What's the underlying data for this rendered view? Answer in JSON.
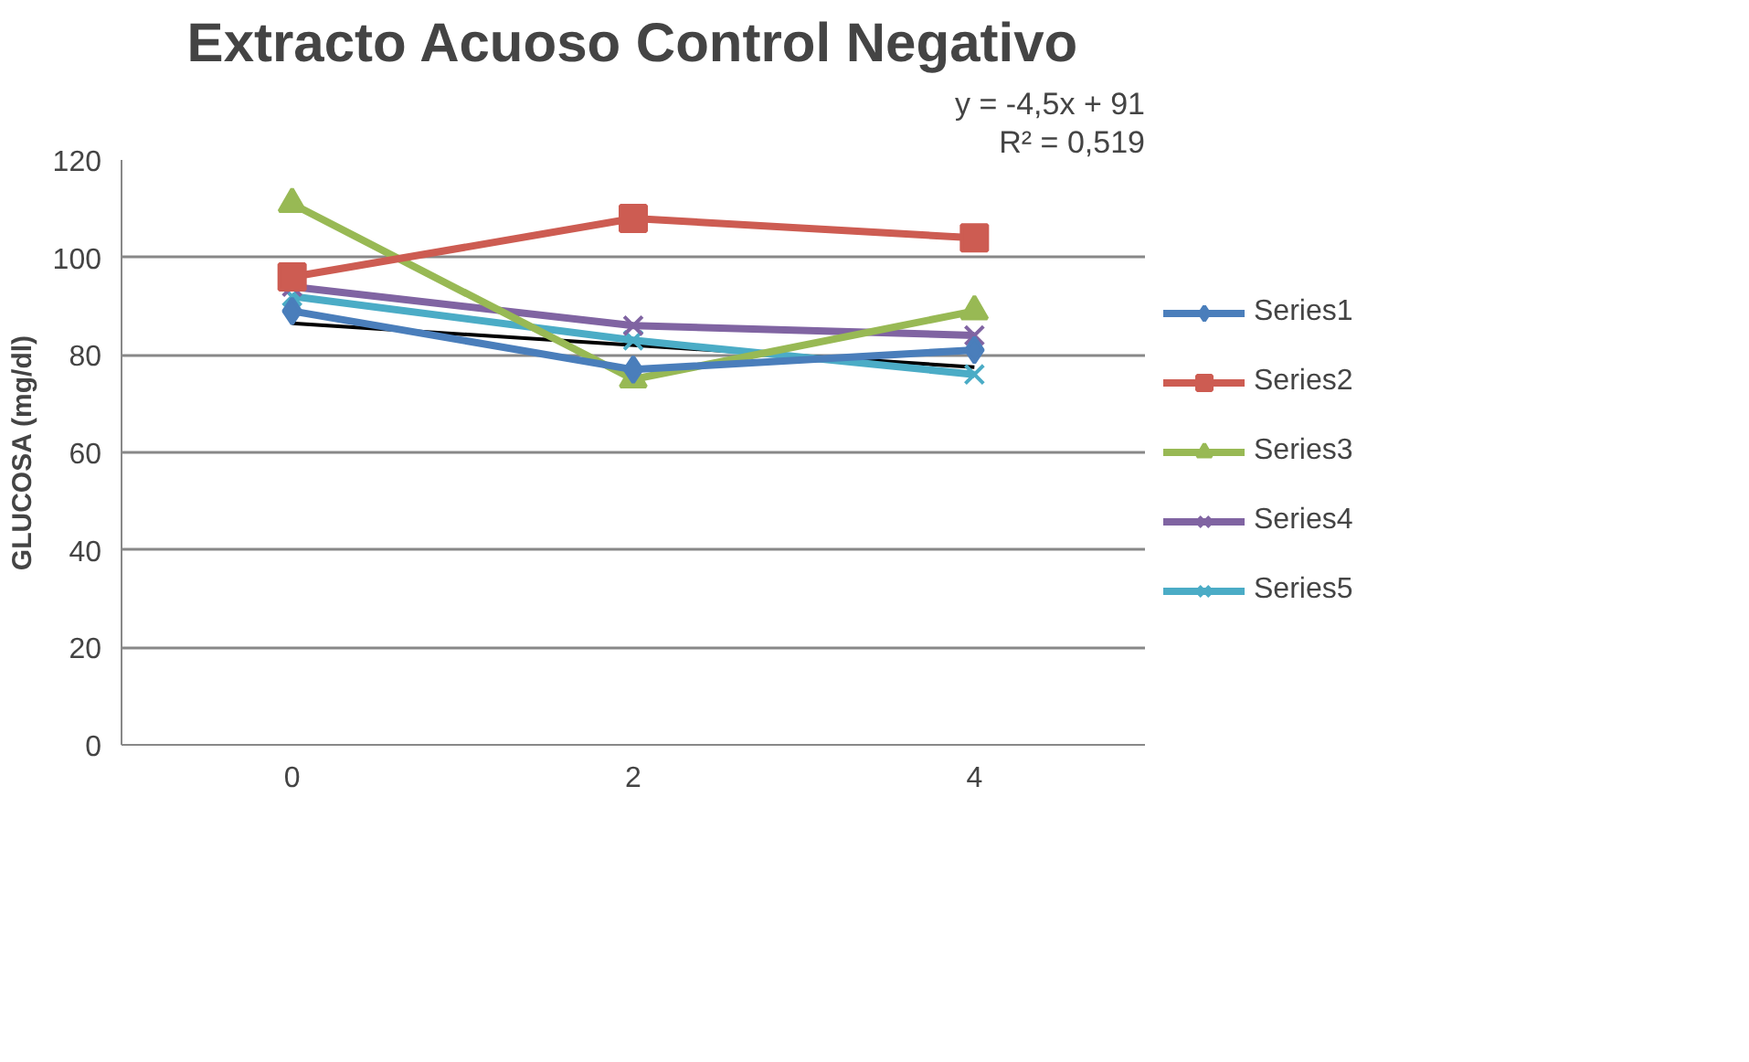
{
  "chart_data": {
    "type": "line",
    "title": "Extracto Acuoso Control Negativo",
    "ylabel": "GLUCOSA (mg/dl)",
    "x": [
      0,
      2,
      4
    ],
    "xlim": [
      -1,
      5
    ],
    "xticks": [
      0,
      2,
      4
    ],
    "ylim": [
      0,
      120
    ],
    "yticks": [
      0,
      20,
      40,
      60,
      80,
      100,
      120
    ],
    "grid": "y",
    "legend": "right",
    "series": [
      {
        "name": "Series1",
        "color": "#4a7ebb",
        "marker": "diamond",
        "values": [
          89,
          77,
          81
        ]
      },
      {
        "name": "Series2",
        "color": "#cd5c52",
        "marker": "square",
        "values": [
          96,
          108,
          104
        ]
      },
      {
        "name": "Series3",
        "color": "#98b954",
        "marker": "triangle",
        "values": [
          111,
          75,
          89
        ]
      },
      {
        "name": "Series4",
        "color": "#8064a2",
        "marker": "cross",
        "values": [
          94,
          86,
          84
        ]
      },
      {
        "name": "Series5",
        "color": "#4bacc6",
        "marker": "cross",
        "values": [
          92,
          83,
          76
        ]
      },
      {
        "color": "#000000",
        "marker": "none",
        "x": [
          0,
          4
        ],
        "values": [
          86.5,
          77.5
        ]
      }
    ],
    "annotations": [
      "y = -4,5x + 91",
      "R² = 0,519"
    ]
  }
}
